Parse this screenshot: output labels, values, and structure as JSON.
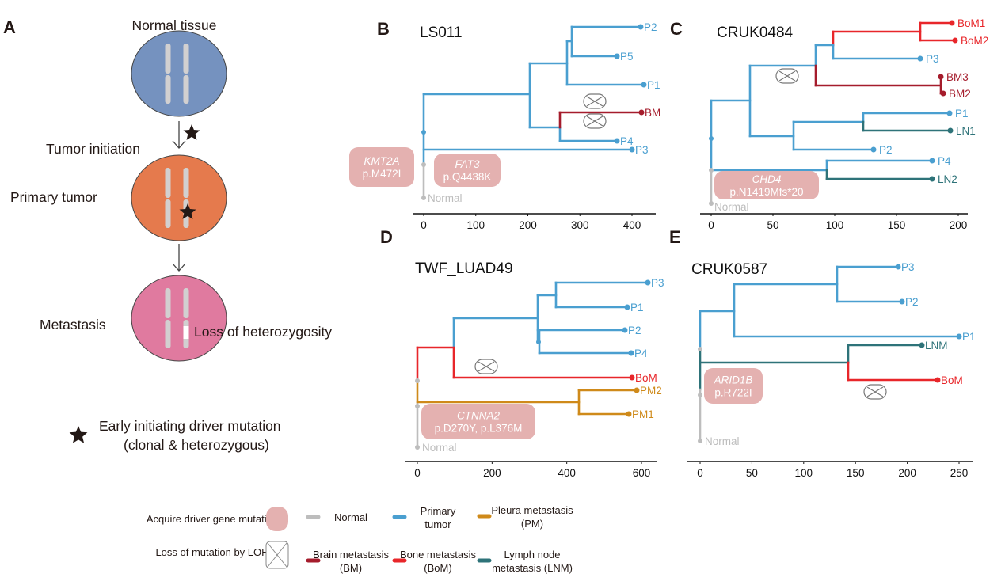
{
  "colors": {
    "normal": "#bdbdbd",
    "primary": "#4a9fd0",
    "brain": "#a51c2c",
    "bone": "#e8262a",
    "pleura": "#cf8a1a",
    "lymph": "#2e7379",
    "mutation_box": "#e4b1b0",
    "normal_cell": "#7592bf",
    "tumor_cell": "#e57a4d",
    "metastasis_cell": "#e07a9f"
  },
  "panel_a": {
    "letter": "A",
    "normal_tissue": "Normal tissue",
    "tumor_initiation": "Tumor initiation",
    "primary_tumor": "Primary tumor",
    "metastasis": "Metastasis",
    "loh": "Loss of heterozygosity",
    "star_legend_line1": "Early initiating driver mutation",
    "star_legend_line2": "(clonal & heterozygous)"
  },
  "panels": {
    "B": {
      "letter": "B",
      "title": "LS011",
      "normal": "Normal",
      "ticks": [
        0,
        100,
        200,
        300,
        400
      ],
      "tips": [
        "P2",
        "P5",
        "P1",
        "BM",
        "P4",
        "P3"
      ],
      "mutations": [
        {
          "gene": "KMT2A",
          "change": "p.M472I"
        },
        {
          "gene": "FAT3",
          "change": "p.Q4438K"
        }
      ]
    },
    "C": {
      "letter": "C",
      "title": "CRUK0484",
      "normal": "Normal",
      "ticks": [
        0,
        50,
        100,
        150,
        200
      ],
      "tips": [
        "BoM1",
        "BoM2",
        "P3",
        "BM3",
        "BM2",
        "P1",
        "LN1",
        "P2",
        "P4",
        "LN2"
      ],
      "mutations": [
        {
          "gene": "CHD4",
          "change": "p.N1419Mfs*20"
        }
      ]
    },
    "D": {
      "letter": "D",
      "title": "TWF_LUAD49",
      "normal": "Normal",
      "ticks": [
        0,
        200,
        400,
        600
      ],
      "tips": [
        "P3",
        "P1",
        "P2",
        "P4",
        "BoM",
        "PM2",
        "PM1"
      ],
      "mutations": [
        {
          "gene": "CTNNA2",
          "change": "p.D270Y, p.L376M"
        }
      ]
    },
    "E": {
      "letter": "E",
      "title": "CRUK0587",
      "normal": "Normal",
      "ticks": [
        0,
        50,
        100,
        150,
        200,
        250
      ],
      "tips": [
        "P3",
        "P2",
        "P1",
        "LNM",
        "BoM"
      ],
      "mutations": [
        {
          "gene": "ARID1B",
          "change": "p.R722I"
        }
      ]
    }
  },
  "legend": {
    "acquire": "Acquire driver gene mutation",
    "loh": "Loss of mutation by LOH",
    "normal": [
      "Normal"
    ],
    "primary": [
      "Primary",
      "tumor"
    ],
    "pleura": [
      "Pleura metastasis",
      "(PM)"
    ],
    "brain": [
      "Brain metastasis",
      "(BM)"
    ],
    "bone": [
      "Bone metastasis",
      "(BoM)"
    ],
    "lymph": [
      "Lymph node",
      "metastasis (LNM)"
    ]
  }
}
